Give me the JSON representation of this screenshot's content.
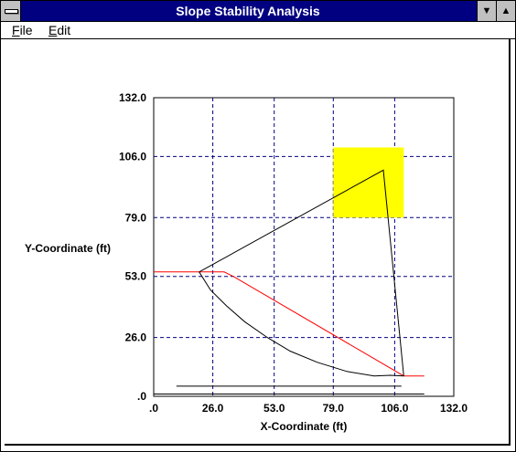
{
  "window": {
    "title": "Slope Stability Analysis",
    "min_glyph": "▼",
    "max_glyph": "▲"
  },
  "menu": {
    "file_hot": "F",
    "file_rest": "ile",
    "edit_hot": "E",
    "edit_rest": "dit"
  },
  "chart_data": {
    "type": "line",
    "xlabel": "X-Coordinate (ft)",
    "ylabel": "Y-Coordinate (ft)",
    "xlim": [
      0,
      132
    ],
    "ylim": [
      0,
      132
    ],
    "x_ticks": [
      0,
      26,
      53,
      79,
      106,
      132
    ],
    "x_tick_labels": [
      ".0",
      "26.0",
      "53.0",
      "79.0",
      "106.0",
      "132.0"
    ],
    "y_ticks": [
      0,
      26,
      53,
      79,
      106,
      132
    ],
    "y_tick_labels": [
      ".0",
      "26.0",
      "53.0",
      "79.0",
      "106.0",
      "132.0"
    ],
    "grid": "dashed",
    "colors": {
      "grid": "#000080",
      "phreatic": "#ff0000",
      "slip": "#000000",
      "highlight": "#ffff00"
    },
    "highlight_rect": {
      "x": [
        79,
        110
      ],
      "y": [
        79,
        110
      ]
    },
    "series": [
      {
        "id": "ground-profile",
        "color": "#000000",
        "points": [
          [
            0,
            1
          ],
          [
            119,
            1
          ]
        ]
      },
      {
        "id": "base-line",
        "color": "#000000",
        "points": [
          [
            10,
            4.5
          ],
          [
            109,
            4.5
          ]
        ]
      },
      {
        "id": "phreatic-line",
        "color": "#ff0000",
        "points": [
          [
            0,
            55
          ],
          [
            31,
            55
          ],
          [
            35,
            53
          ],
          [
            110,
            9
          ],
          [
            119,
            9
          ]
        ]
      },
      {
        "id": "slip-wedge",
        "color": "#000000",
        "points": [
          [
            20,
            55
          ],
          [
            101,
            100
          ],
          [
            110,
            9
          ]
        ]
      },
      {
        "id": "slip-arc",
        "color": "#000000",
        "points": [
          [
            20,
            55
          ],
          [
            25,
            47
          ],
          [
            32,
            40
          ],
          [
            40,
            33
          ],
          [
            50,
            26
          ],
          [
            60,
            20
          ],
          [
            72,
            15
          ],
          [
            85,
            11
          ],
          [
            97,
            9
          ],
          [
            104,
            9.3
          ],
          [
            110,
            9
          ]
        ]
      }
    ]
  }
}
